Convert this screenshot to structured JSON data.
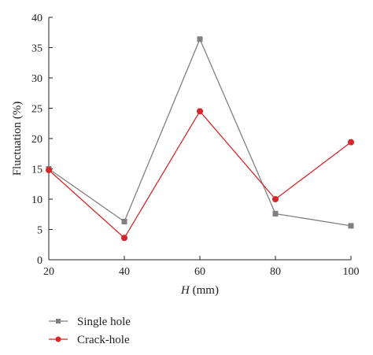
{
  "chart_data": {
    "type": "line",
    "title": "",
    "xlabel_var": "H",
    "xlabel_unit": " (mm)",
    "ylabel": "Fluctuation (%)",
    "x": [
      20,
      40,
      60,
      80,
      100
    ],
    "xlim": [
      20,
      100
    ],
    "ylim": [
      0,
      40
    ],
    "xticks": [
      "20",
      "40",
      "60",
      "80",
      "100"
    ],
    "yticks": [
      "0",
      "5",
      "10",
      "15",
      "20",
      "25",
      "30",
      "35",
      "40"
    ],
    "grid": false,
    "legend_position": "bottom-left",
    "series": [
      {
        "name": "Single hole",
        "values": [
          15.0,
          6.3,
          36.4,
          7.6,
          5.6
        ],
        "color": "#808080",
        "marker": "square"
      },
      {
        "name": "Crack-hole",
        "values": [
          14.8,
          3.6,
          24.5,
          10.0,
          19.4
        ],
        "color": "#d62728",
        "marker": "circle"
      }
    ]
  }
}
